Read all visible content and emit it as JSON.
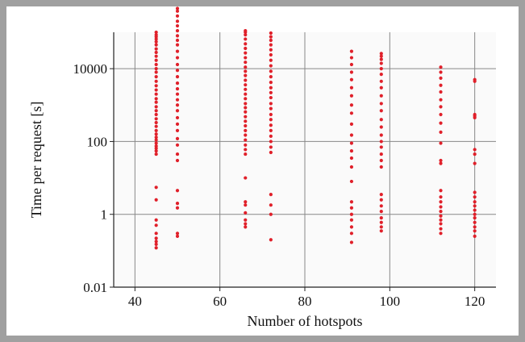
{
  "chart_data": {
    "type": "scatter",
    "title": "",
    "xlabel": "Number of hotspots",
    "ylabel": "Time per request [s]",
    "xlim": [
      35,
      125
    ],
    "ylim": [
      0.01,
      100000
    ],
    "yscale": "log",
    "grid": true,
    "legend": "none",
    "x_ticks": [
      40,
      60,
      80,
      100,
      120
    ],
    "x_tick_labels": [
      "40",
      "60",
      "80",
      "100",
      "120"
    ],
    "y_ticks": [
      0.01,
      1,
      100,
      10000
    ],
    "y_tick_labels": [
      "0.01",
      "1",
      "100",
      "10000"
    ],
    "colors": {
      "points": "#e0202a",
      "plot_background": "#fafafa",
      "gridline": "#888888",
      "axis": "#222222",
      "frame": "#a0a0a0"
    },
    "series": [
      {
        "x_values": [
          45,
          50,
          66,
          72,
          91,
          98,
          112,
          120
        ],
        "clusters": [
          {
            "x": 45,
            "y": [
              0.12,
              0.15,
              0.18,
              0.22,
              0.3,
              0.5,
              0.7,
              2.5,
              5.5,
              45,
              55,
              65,
              75,
              90,
              110,
              130,
              160,
              200,
              260,
              330,
              420,
              550,
              700,
              900,
              1200,
              1500,
              2000,
              2600,
              3400,
              4500,
              6000,
              8000,
              10000,
              13000,
              17000,
              22000,
              28000,
              35000,
              45000,
              55000,
              65000,
              75000,
              85000,
              100000
            ]
          },
          {
            "x": 50,
            "y": [
              0.25,
              0.3,
              1.5,
              2.0,
              4.5,
              30,
              45,
              80,
              120,
              200,
              300,
              450,
              700,
              1000,
              1400,
              2000,
              2800,
              4000,
              6000,
              9000,
              13000,
              20000,
              30000,
              45000,
              60000,
              80000,
              110000,
              150000,
              200000,
              280000,
              380000,
              450000
            ]
          },
          {
            "x": 66,
            "y": [
              0.45,
              0.55,
              0.7,
              1.1,
              1.8,
              2.2,
              10,
              45,
              60,
              80,
              110,
              150,
              200,
              270,
              360,
              480,
              650,
              850,
              1100,
              1500,
              2000,
              2700,
              3600,
              4800,
              6500,
              8500,
              11000,
              15000,
              20000,
              27000,
              36000,
              48000,
              65000,
              85000,
              100000,
              110000
            ]
          },
          {
            "x": 72,
            "y": [
              0.2,
              1.0,
              1.8,
              3.5,
              50,
              70,
              100,
              140,
              200,
              280,
              400,
              550,
              800,
              1100,
              1600,
              2200,
              3000,
              4200,
              6000,
              8500,
              12000,
              17000,
              24000,
              33000,
              45000,
              60000,
              75000,
              95000
            ]
          },
          {
            "x": 91,
            "y": [
              0.17,
              0.3,
              0.45,
              0.7,
              1.0,
              1.5,
              2.2,
              8,
              20,
              35,
              55,
              90,
              150,
              300,
              600,
              1000,
              1800,
              3000,
              5000,
              8000,
              13000,
              20000,
              30000
            ]
          },
          {
            "x": 98,
            "y": [
              0.35,
              0.45,
              0.6,
              0.8,
              1.2,
              1.7,
              2.5,
              3.5,
              20,
              30,
              45,
              70,
              100,
              150,
              250,
              400,
              700,
              1100,
              1800,
              3000,
              4500,
              7000,
              10000,
              14000,
              18000,
              22000,
              26000
            ]
          },
          {
            "x": 112,
            "y": [
              0.3,
              0.4,
              0.55,
              0.7,
              0.9,
              1.2,
              1.6,
              2.2,
              3.0,
              4.5,
              25,
              30,
              90,
              180,
              320,
              550,
              900,
              1400,
              2300,
              3500,
              5500,
              8000,
              11000
            ]
          },
          {
            "x": 120,
            "y": [
              0.25,
              0.35,
              0.45,
              0.6,
              0.8,
              1.0,
              1.3,
              1.7,
              2.2,
              3.0,
              4.0,
              25,
              45,
              60,
              450,
              500,
              550,
              4500,
              5000
            ]
          }
        ]
      }
    ]
  }
}
